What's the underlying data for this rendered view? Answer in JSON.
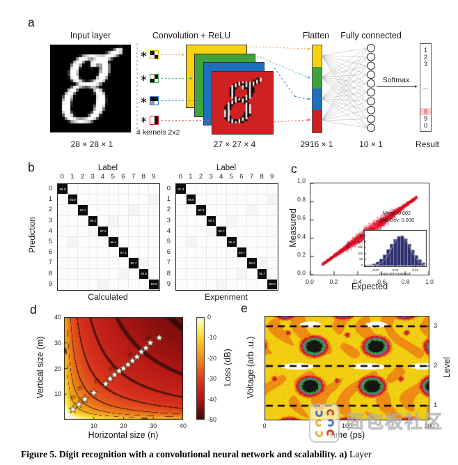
{
  "figure": {
    "panels": {
      "a": "a",
      "b": "b",
      "c": "c",
      "d": "d",
      "e": "e"
    },
    "caption_bold": "Figure 5. Digit recognition with a convolutional neural network and scalability. a)",
    "caption_rest": " Layer"
  },
  "watermark": {
    "text": "面包板社区"
  },
  "panel_a": {
    "titles": {
      "input": "Input layer",
      "conv": "Convolution + ReLU",
      "flatten": "Flatten",
      "fc": "Fully connected"
    },
    "dims": {
      "input": "28 × 28 × 1",
      "conv": "27 × 27 × 4",
      "flatten": "2916 × 1",
      "fc": "10 × 1",
      "result": "Result"
    },
    "kernels_label": "4 kernels 2x2",
    "softmax_label": "Softmax",
    "map_colors": [
      "#f7d213",
      "#3fa33c",
      "#1e6fbe",
      "#cf2121"
    ],
    "arrow_colors": [
      "#f5a623",
      "#17b3ae",
      "#2b7fd4",
      "#e8413c"
    ],
    "kernel_border_colors": [
      "#e0b400",
      "#3fa33c",
      "#2b7fd4",
      "#cf2121"
    ],
    "kernel_cells": [
      [
        "#111111",
        "#f2f2f2",
        "#f2f2f2",
        "#111111"
      ],
      [
        "#f2f2f2",
        "#111111",
        "#111111",
        "#f2f2f2"
      ],
      [
        "#111111",
        "#111111",
        "#9a9a9a",
        "#fdfdfd"
      ],
      [
        "#fdfdfd",
        "#111111",
        "#fdfdfd",
        "#111111"
      ]
    ],
    "fc_node_count": 10,
    "result_digits": [
      "1",
      "2",
      "3",
      "...",
      "8",
      "9",
      "0"
    ],
    "result_highlight": "8",
    "highlight_color": "#e02424",
    "highlight_bg": "#f9cfcf"
  },
  "chart_data": [
    {
      "id": "confusion_calculated",
      "type": "heatmap",
      "axis_top": "Label",
      "axis_left": "Prediction",
      "axis_bottom": "Calculated",
      "labels": [
        "0",
        "1",
        "2",
        "3",
        "4",
        "5",
        "6",
        "7",
        "8",
        "9"
      ],
      "diagonal_percent": [
        98.8,
        98.9,
        93.7,
        96.2,
        97.2,
        96.4,
        97.1,
        95.7,
        95.6,
        92.0
      ],
      "cell_on": "#0d0d0d",
      "cell_off": "#fcfcfd"
    },
    {
      "id": "confusion_experiment",
      "type": "heatmap",
      "axis_top": "Label",
      "axis_bottom": "Experiment",
      "labels": [
        "0",
        "1",
        "2",
        "3",
        "4",
        "5",
        "6",
        "7",
        "8",
        "9"
      ],
      "diagonal_percent": [
        97.4,
        98.0,
        92.3,
        95.1,
        96.7,
        95.0,
        96.7,
        95.2,
        96.7,
        89.8
      ],
      "cell_on": "#0d0d0d",
      "cell_off": "#fcfcfd"
    },
    {
      "id": "expected_vs_measured",
      "type": "scatter",
      "xlabel": "Expected",
      "ylabel": "Measured",
      "xlim": [
        0.0,
        1.0
      ],
      "ylim": [
        0.0,
        1.0
      ],
      "xticks": [
        "0.0",
        "0.2",
        "0.4",
        "0.6",
        "0.8",
        "1.0"
      ],
      "yticks": [
        "0.0",
        "0.2",
        "0.4",
        "0.6",
        "0.8",
        "1.0"
      ],
      "point_color": "#e8112d",
      "trend": {
        "x_range": [
          0.1,
          0.9
        ],
        "relation": "measured ≈ 0.02 + 0.92 × expected",
        "band_halfwidth_max": 0.05
      },
      "inset": {
        "type": "bar",
        "stats": [
          "Mean: 0.002",
          "Std. Dev: 0.008"
        ],
        "xlabel": "(expected-measured)",
        "ylabel": "Counts",
        "xticks": [
          "-0.02",
          "0.00",
          "0.02"
        ],
        "yticks": [
          "0",
          "5k",
          "10k",
          "15k",
          "20k",
          "25k"
        ],
        "xlim": [
          -0.03,
          0.03
        ],
        "ylim_k": [
          0,
          25
        ],
        "bar_color": "#2b2f6e",
        "counts_k": [
          0.3,
          0.7,
          1.5,
          3,
          5.5,
          9,
          13.5,
          18,
          22,
          24.5,
          25,
          22.5,
          18,
          13,
          8.5,
          5,
          2.5
        ]
      }
    },
    {
      "id": "loss_scaling",
      "type": "heatmap",
      "xlabel": "Horizontal size (n)",
      "ylabel": "Vertical size (m)",
      "xlim": [
        0,
        40
      ],
      "ylim": [
        0,
        40
      ],
      "xticks": [
        10,
        20,
        30,
        40
      ],
      "yticks": [
        10,
        20,
        30,
        40
      ],
      "colorbar": {
        "label": "Loss (dB)",
        "ticks": [
          "0",
          "-10",
          "-20",
          "-30",
          "-40",
          "-50"
        ],
        "range_db": [
          0,
          -50
        ]
      },
      "contour_levels_db": [
        -15,
        -20,
        -25,
        -30,
        -35,
        -40,
        -45
      ],
      "contour_labels": [
        "15",
        "20",
        "25",
        "30",
        "35",
        "40",
        "45"
      ],
      "contour_label_pos": [
        [
          2.9,
          8.4
        ],
        [
          5.3,
          12.3
        ],
        [
          10.9,
          15.0
        ],
        [
          15.8,
          19.8
        ],
        [
          22.2,
          25.3
        ],
        [
          28.4,
          32.1
        ],
        [
          37.8,
          37.4
        ]
      ],
      "approx_model": "loss_dB ≈ −(16.5·log10(n·m) − 7)",
      "stars_nm": [
        [
          3,
          4
        ],
        [
          5,
          6
        ],
        [
          7,
          8
        ],
        [
          10,
          10.5
        ],
        [
          14,
          14
        ],
        [
          15.5,
          16
        ],
        [
          17,
          17.5
        ],
        [
          18.5,
          19
        ],
        [
          20,
          20
        ],
        [
          21.5,
          21.5
        ],
        [
          23,
          23
        ],
        [
          24.5,
          24.5
        ],
        [
          26,
          26.5
        ],
        [
          27.5,
          28
        ],
        [
          29,
          30
        ],
        [
          32,
          32
        ]
      ]
    },
    {
      "id": "eye_diagram",
      "type": "heatmap",
      "xlabel": "Time (ps)",
      "ylabel": "Voltage (arb .u.)",
      "right_axis": "Level",
      "xlim": [
        0,
        200
      ],
      "xticks": [
        0,
        100,
        200
      ],
      "right_ticks": [
        "3",
        "2",
        "1"
      ],
      "level_lines_frac": [
        0.1,
        0.48,
        0.86
      ],
      "palette": {
        "background": "#f3cf11",
        "mottle": "#ef8d13",
        "ring_orange": "#ee7d12",
        "ring_red": "#cd1b22",
        "ring_violet": "#7d5fc6",
        "ring_green": "#2f9e33",
        "core": "#151515",
        "rail": "#ffffff"
      },
      "eye_rows": [
        {
          "y_frac": 0.29,
          "centers_ps": [
            -15,
            60,
            135,
            210
          ]
        },
        {
          "y_frac": 0.67,
          "centers_ps": [
            -20,
            55,
            130,
            205
          ]
        },
        {
          "y_frac": -0.07,
          "centers_ps": [
            25,
            95,
            170,
            245
          ]
        },
        {
          "y_frac": 1.07,
          "centers_ps": [
            30,
            100,
            175,
            250
          ]
        }
      ],
      "white_rails": [
        {
          "y_frac": 0.48,
          "centers_ps": [
            -35,
            40,
            125,
            195
          ]
        },
        {
          "y_frac": 0.08,
          "centers_ps": [
            55,
            135,
            215
          ]
        }
      ],
      "hot_spots": [
        [
          28,
          0.16
        ],
        [
          100,
          0.18
        ],
        [
          172,
          0.16
        ],
        [
          12,
          0.6
        ],
        [
          88,
          0.62
        ],
        [
          165,
          0.6
        ]
      ]
    }
  ]
}
